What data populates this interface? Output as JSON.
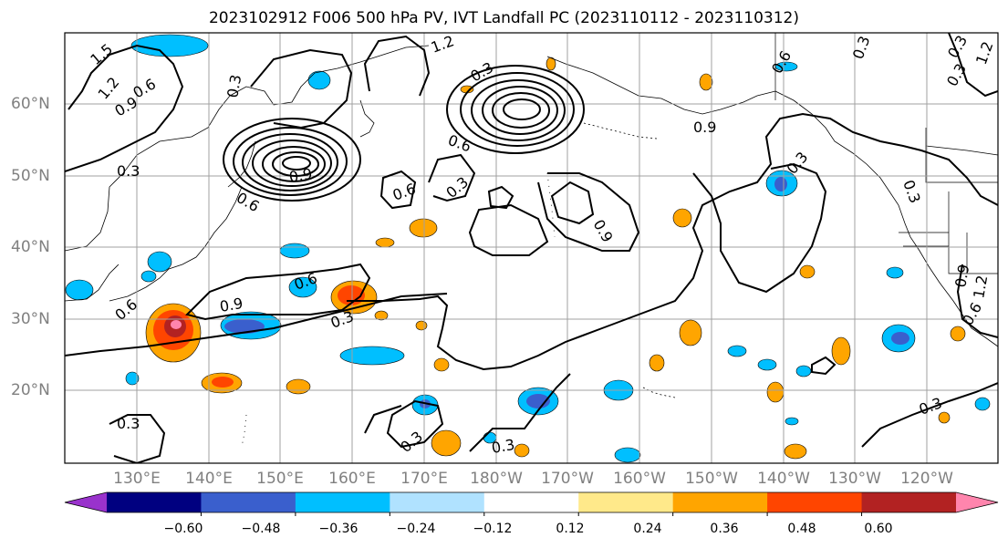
{
  "title": "2023102912 F006 500 hPa PV, IVT Landfall PC (2023110112 - 2023110312)",
  "lat_labels": [
    "60°N",
    "50°N",
    "40°N",
    "30°N",
    "20°N"
  ],
  "lon_labels": [
    "130°E",
    "140°E",
    "150°E",
    "160°E",
    "170°E",
    "180°W",
    "170°W",
    "160°W",
    "150°W",
    "140°W",
    "130°W",
    "120°W"
  ],
  "contour_labels": [
    "1.5",
    "1.2",
    "0.9",
    "0.6",
    "0.3",
    "1.2",
    "0.3",
    "0.3",
    "0.3",
    "0.6",
    "0.9",
    "0.6",
    "0.6",
    "0.3",
    "0.9",
    "0.6",
    "0.6",
    "0.9",
    "0.3",
    "0.3",
    "0.6",
    "0.3",
    "0.3",
    "0.3",
    "0.3",
    "0.9",
    "1.2",
    "0.6",
    "0.3",
    "0.3",
    "0.3",
    "1.2",
    "0.9"
  ],
  "colorbar": {
    "ticks": [
      "−0.60",
      "−0.48",
      "−0.36",
      "−0.24",
      "−0.12",
      "0.12",
      "0.24",
      "0.36",
      "0.48",
      "0.60"
    ],
    "colors": [
      "#9932cc",
      "#000080",
      "#3a5fcd",
      "#00bfff",
      "#b0e2ff",
      "#ffffff",
      "#ffe98a",
      "#ffa500",
      "#ff4500",
      "#b22222",
      "#ff85ad"
    ]
  }
}
